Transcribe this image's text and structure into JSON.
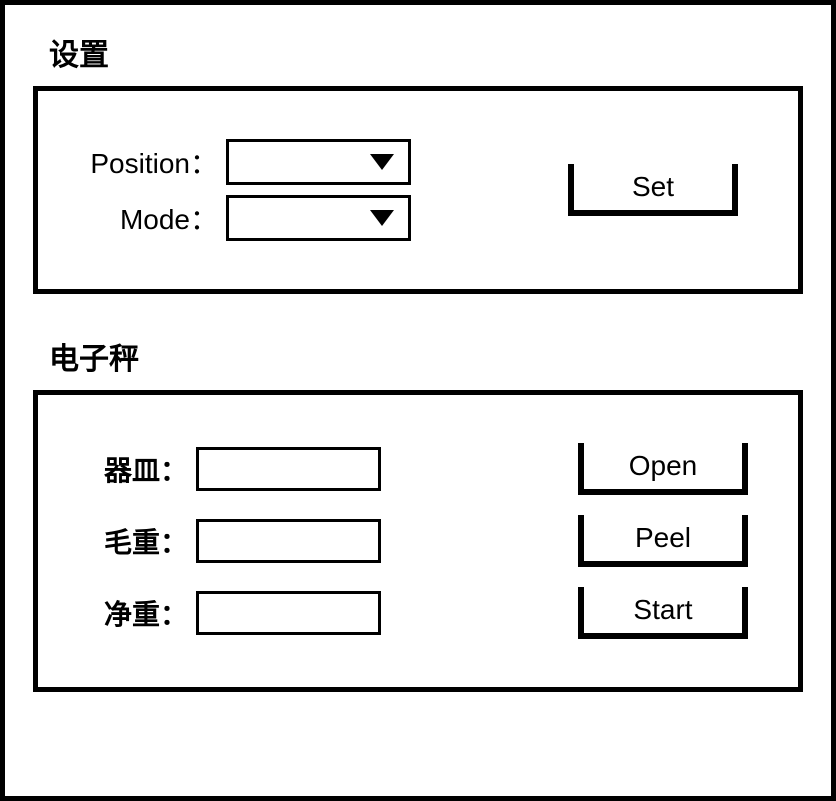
{
  "settings": {
    "title": "设置",
    "position_label": "Position：",
    "mode_label": "Mode：",
    "position_value": "",
    "mode_value": "",
    "set_button": "Set"
  },
  "scale": {
    "title": "电子秤",
    "dish_label": "器皿：",
    "gross_label": "毛重：",
    "net_label": "净重：",
    "dish_value": "",
    "gross_value": "",
    "net_value": "",
    "open_button": "Open",
    "peel_button": "Peel",
    "start_button": "Start"
  },
  "style": {
    "border_color": "#000000",
    "background": "#ffffff",
    "font_color": "#000000",
    "title_fontsize": 30,
    "label_fontsize": 28,
    "button_fontsize": 28
  }
}
